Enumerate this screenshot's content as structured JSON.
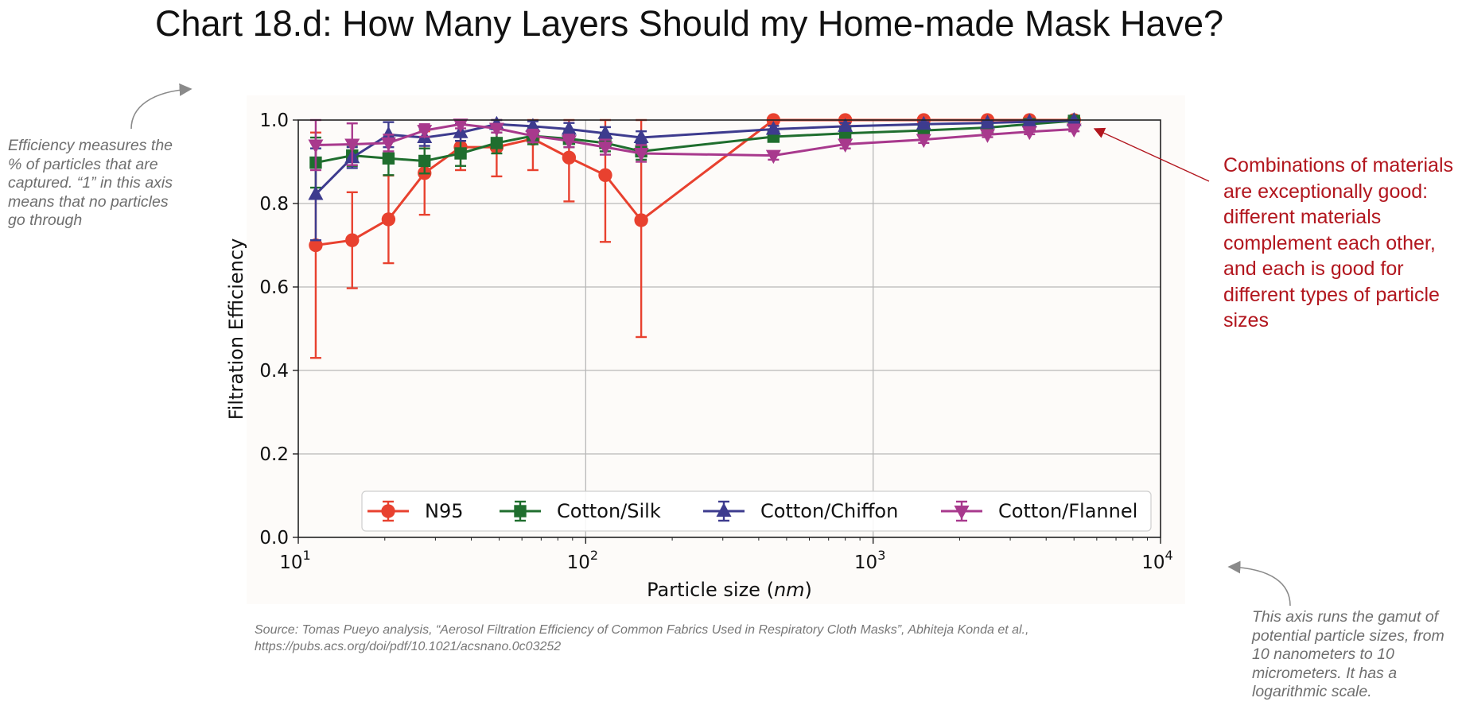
{
  "title": "Chart 18.d: How Many Layers Should my Home-made Mask Have?",
  "annotations": {
    "left_note": "Efficiency measures the % of particles that are captured. “1” in this axis means that no particles go through",
    "right_note": "Combinations of materials are exceptionally good: different materials complement each other, and each is good for different types of particle sizes",
    "bottom_note": "This axis runs the gamut of potential particle sizes, from 10 nanometers to 10 micrometers. It has a logarithmic scale."
  },
  "source": {
    "line1": "Source: Tomas Pueyo analysis, “Aerosol Filtration Efficiency of Common Fabrics Used in Respiratory Cloth Masks”, Abhiteja Konda et al.,",
    "line2": "https://pubs.acs.org/doi/pdf/10.1021/acsnano.0c03252"
  },
  "chart_data": {
    "type": "line",
    "xlabel": "Particle size (nm)",
    "ylabel": "Filtration Efficiency",
    "xscale": "log",
    "xlim": [
      10,
      10000
    ],
    "ylim": [
      0,
      1.0
    ],
    "xticks": [
      "10",
      "10",
      "10",
      "10"
    ],
    "xtick_exponents": [
      "1",
      "2",
      "3",
      "4"
    ],
    "yticks": [
      "0.0",
      "0.2",
      "0.4",
      "0.6",
      "0.8",
      "1.0"
    ],
    "grid": true,
    "legend_position": "bottom",
    "series": [
      {
        "name": "N95",
        "color": "#e8412f",
        "marker": "circle",
        "x": [
          11.5,
          15.4,
          20.6,
          27.5,
          36.7,
          49,
          65.5,
          87.5,
          117,
          156,
          450,
          800,
          1500,
          2500,
          3500,
          5000
        ],
        "y": [
          0.7,
          0.712,
          0.762,
          0.873,
          0.935,
          0.935,
          0.955,
          0.91,
          0.868,
          0.76,
          1.0,
          1.0,
          1.0,
          1.0,
          1.0,
          1.0
        ],
        "err": [
          0.27,
          0.115,
          0.105,
          0.1,
          0.055,
          0.07,
          0.075,
          0.105,
          0.16,
          0.28,
          0.0,
          0.0,
          0.0,
          0.0,
          0.0,
          0.0
        ]
      },
      {
        "name": "Cotton/Silk",
        "color": "#1f6e2e",
        "marker": "square",
        "x": [
          11.5,
          15.4,
          20.6,
          27.5,
          36.7,
          49,
          65.5,
          87.5,
          117,
          156,
          450,
          800,
          1500,
          2500,
          3500,
          5000
        ],
        "y": [
          0.898,
          0.915,
          0.908,
          0.902,
          0.92,
          0.945,
          0.962,
          0.955,
          0.945,
          0.925,
          0.96,
          0.968,
          0.975,
          0.982,
          0.99,
          0.998
        ],
        "err": [
          0.06,
          0.025,
          0.04,
          0.03,
          0.03,
          0.025,
          0.02,
          0.02,
          0.02,
          0.02,
          0.01,
          0.01,
          0.01,
          0.01,
          0.01,
          0.005
        ]
      },
      {
        "name": "Cotton/Chiffon",
        "color": "#3d3b8e",
        "marker": "triangle-up",
        "x": [
          11.5,
          15.4,
          20.6,
          27.5,
          36.7,
          49,
          65.5,
          87.5,
          117,
          156,
          450,
          800,
          1500,
          2500,
          3500,
          5000
        ],
        "y": [
          0.822,
          0.91,
          0.965,
          0.958,
          0.97,
          0.99,
          0.985,
          0.978,
          0.968,
          0.958,
          0.978,
          0.985,
          0.99,
          0.993,
          0.996,
          0.999
        ],
        "err": [
          0.11,
          0.025,
          0.03,
          0.02,
          0.02,
          0.012,
          0.012,
          0.015,
          0.015,
          0.015,
          0.008,
          0.008,
          0.005,
          0.005,
          0.004,
          0.002
        ]
      },
      {
        "name": "Cotton/Flannel",
        "color": "#a8398d",
        "marker": "triangle-down",
        "x": [
          11.5,
          15.4,
          20.6,
          27.5,
          36.7,
          49,
          65.5,
          87.5,
          117,
          156,
          450,
          800,
          1500,
          2500,
          3500,
          5000
        ],
        "y": [
          0.94,
          0.942,
          0.945,
          0.975,
          0.99,
          0.98,
          0.962,
          0.95,
          0.935,
          0.92,
          0.915,
          0.942,
          0.953,
          0.965,
          0.972,
          0.978
        ],
        "err": [
          0.06,
          0.05,
          0.02,
          0.015,
          0.01,
          0.01,
          0.015,
          0.015,
          0.018,
          0.02,
          0.01,
          0.01,
          0.008,
          0.006,
          0.006,
          0.005
        ]
      }
    ]
  }
}
